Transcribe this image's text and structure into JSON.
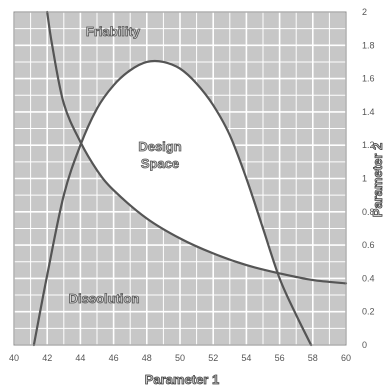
{
  "chart_data": {
    "type": "line",
    "xlabel": "Parameter 1",
    "ylabel": "Parameter 2",
    "xlim": [
      40,
      60
    ],
    "ylim": [
      0,
      2
    ],
    "x_ticks": [
      "40",
      "42",
      "44",
      "46",
      "48",
      "50",
      "52",
      "54",
      "56",
      "58",
      "60"
    ],
    "y_ticks": [
      "0",
      "0.2",
      "0.4",
      "0.6",
      "0.8",
      "1",
      "1.2",
      "1.4",
      "1.6",
      "1.8",
      "2"
    ],
    "grid": true,
    "series": [
      {
        "name": "Friability",
        "x": [
          41.2,
          42.0,
          43.0,
          44.0,
          45.0,
          46.0,
          47.0,
          48.0,
          49.0,
          50.0,
          51.0,
          52.0,
          53.0,
          54.0,
          55.0,
          56.0,
          57.0,
          57.9
        ],
        "y": [
          0.0,
          0.42,
          0.9,
          1.2,
          1.42,
          1.56,
          1.65,
          1.7,
          1.7,
          1.66,
          1.57,
          1.44,
          1.26,
          1.0,
          0.7,
          0.4,
          0.18,
          0.0
        ]
      },
      {
        "name": "Dissolution",
        "x": [
          42.0,
          42.3,
          43.0,
          44.0,
          45.0,
          46.0,
          48.0,
          50.0,
          52.0,
          54.0,
          56.0,
          58.0,
          60.0
        ],
        "y": [
          2.0,
          1.8,
          1.45,
          1.22,
          1.05,
          0.93,
          0.76,
          0.64,
          0.55,
          0.48,
          0.43,
          0.39,
          0.37
        ]
      }
    ],
    "annotations": [
      "Friability",
      "Design Space",
      "Dissolution"
    ],
    "design_space": {
      "label_line1": "Design",
      "label_line2": "Space",
      "fill": "#ffffff"
    },
    "colors": {
      "plot_bg": "#c7c7c7",
      "grid": "#ffffff",
      "curve": "#555555"
    }
  }
}
